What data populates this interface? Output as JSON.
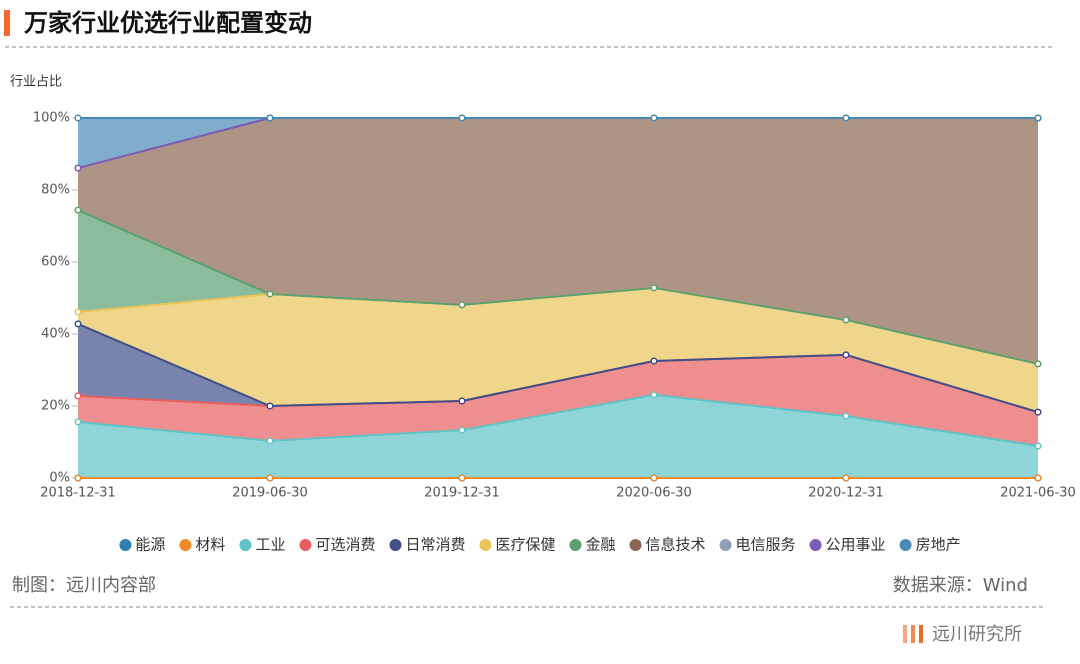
{
  "chart_data": {
    "type": "stacked-area",
    "title": "万家行业优选行业配置变动",
    "y_label": "行业占比",
    "categories": [
      "2018-12-31",
      "2019-06-30",
      "2019-12-31",
      "2020-06-30",
      "2020-12-31",
      "2021-06-30"
    ],
    "ylim": [
      0,
      100
    ],
    "yticks": [
      {
        "value": 0,
        "label": "0%"
      },
      {
        "value": 20,
        "label": "20%"
      },
      {
        "value": 40,
        "label": "40%"
      },
      {
        "value": 60,
        "label": "60%"
      },
      {
        "value": 80,
        "label": "80%"
      },
      {
        "value": 100,
        "label": "100%"
      }
    ],
    "series": [
      {
        "name": "能源",
        "color": "#2f7fb0",
        "values": [
          0,
          0,
          0,
          0,
          0,
          0
        ]
      },
      {
        "name": "材料",
        "color": "#f08a24",
        "values": [
          0,
          0,
          0,
          0,
          0,
          0
        ]
      },
      {
        "name": "工业",
        "color": "#5fc3c6",
        "values": [
          15.6,
          10.3,
          13.3,
          23.1,
          17.2,
          8.9
        ]
      },
      {
        "name": "可选消费",
        "color": "#e85e5e",
        "values": [
          7.2,
          9.7,
          8.1,
          9.4,
          17.0,
          9.4
        ]
      },
      {
        "name": "日常消费",
        "color": "#3f4f8c",
        "values": [
          20.0,
          0,
          0,
          0,
          0,
          0
        ]
      },
      {
        "name": "医疗保健",
        "color": "#e8c55a",
        "values": [
          3.3,
          31.1,
          26.7,
          20.3,
          9.7,
          13.4
        ]
      },
      {
        "name": "金融",
        "color": "#5aa070",
        "values": [
          28.3,
          0,
          0,
          0,
          0,
          0
        ]
      },
      {
        "name": "信息技术",
        "color": "#8c6650",
        "values": [
          11.7,
          48.9,
          51.9,
          47.2,
          56.1,
          68.3
        ]
      },
      {
        "name": "电信服务",
        "color": "#8fa0b4",
        "values": [
          0,
          0,
          0,
          0,
          0,
          0
        ]
      },
      {
        "name": "公用事业",
        "color": "#7b5cb8",
        "values": [
          0,
          0,
          0,
          0,
          0,
          0
        ]
      },
      {
        "name": "房地产",
        "color": "#4a8ab8",
        "values": [
          13.9,
          0,
          0,
          0,
          0,
          0
        ]
      }
    ]
  },
  "footer": {
    "left": "制图：远川内容部",
    "right": "数据来源：Wind",
    "logo": "远川研究所"
  }
}
